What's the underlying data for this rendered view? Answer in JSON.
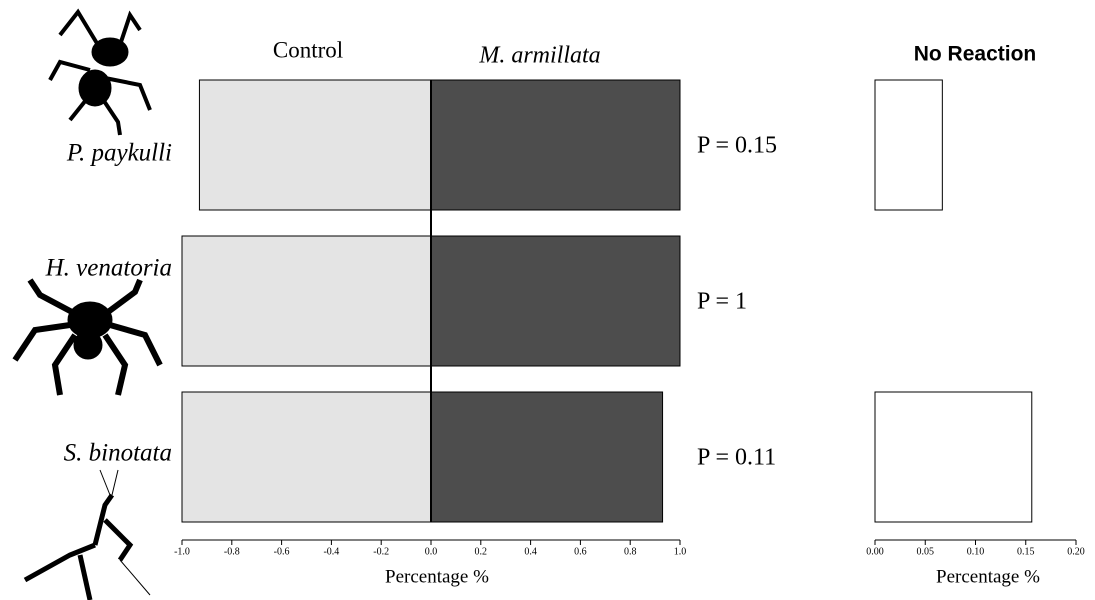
{
  "chart_data": [
    {
      "type": "bar",
      "orientation": "horizontal",
      "categories": [
        "P. paykulli",
        "H. venatoria",
        "S. binotata"
      ],
      "series": [
        {
          "name": "Control",
          "color": "#e4e4e4",
          "values": [
            -0.93,
            -1.0,
            -1.0
          ]
        },
        {
          "name": "M. armillata",
          "color": "#4d4d4d",
          "values": [
            1.0,
            1.0,
            0.93
          ]
        }
      ],
      "annotations": [
        "P = 0.15",
        "P = 1",
        "P = 0.11"
      ],
      "x_label": "Percentage %",
      "xlim": [
        -1.0,
        1.0
      ],
      "xticks": [
        {
          "value": -1.0,
          "label": "-1.0"
        },
        {
          "value": -0.8,
          "label": "-0.8"
        },
        {
          "value": -0.6,
          "label": "-0.6"
        },
        {
          "value": -0.4,
          "label": "-0.4"
        },
        {
          "value": -0.2,
          "label": "-0.2"
        },
        {
          "value": 0.0,
          "label": "0.0"
        },
        {
          "value": 0.2,
          "label": "0.2"
        },
        {
          "value": 0.4,
          "label": "0.4"
        },
        {
          "value": 0.6,
          "label": "0.6"
        },
        {
          "value": 0.8,
          "label": "0.8"
        },
        {
          "value": 1.0,
          "label": "1.0"
        }
      ]
    },
    {
      "type": "bar",
      "orientation": "horizontal",
      "title": "No Reaction",
      "color": "#ffffff",
      "values": [
        0.067,
        0,
        0.156
      ],
      "x_label": "Percentage %",
      "xlim": [
        0,
        0.2
      ],
      "xticks": [
        {
          "value": 0,
          "label": "0.00"
        },
        {
          "value": 0.05,
          "label": "0.05"
        },
        {
          "value": 0.1,
          "label": "0.10"
        },
        {
          "value": 0.15,
          "label": "0.15"
        },
        {
          "value": 0.2,
          "label": "0.20"
        }
      ]
    }
  ]
}
